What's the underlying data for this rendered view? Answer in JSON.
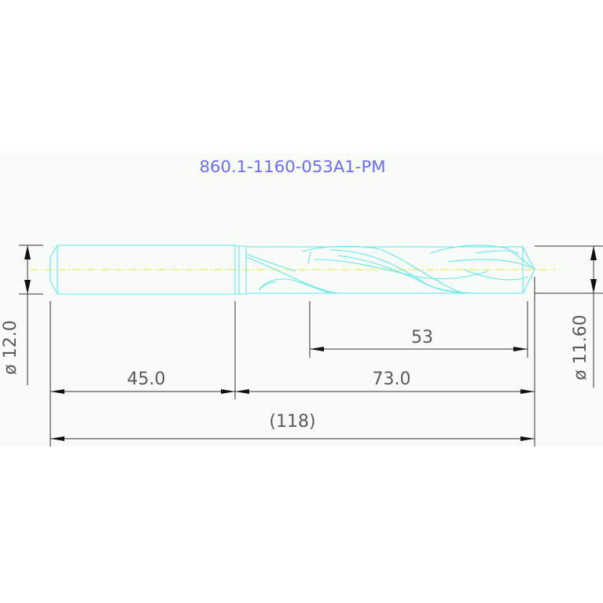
{
  "drawing": {
    "title": "860.1-1160-053A1-PM",
    "colors": {
      "outline": "#5fe8f0",
      "title": "#6b6bff",
      "dimension": "#333333",
      "centerline": "#e8e830",
      "sheet": "#f8fbf8"
    },
    "dimensions": {
      "shank_diameter": "ø 12.0",
      "drill_diameter": "ø 11.60",
      "flute_length": "53",
      "shank_length": "45.0",
      "body_length": "73.0",
      "overall_length": "(118)"
    }
  }
}
